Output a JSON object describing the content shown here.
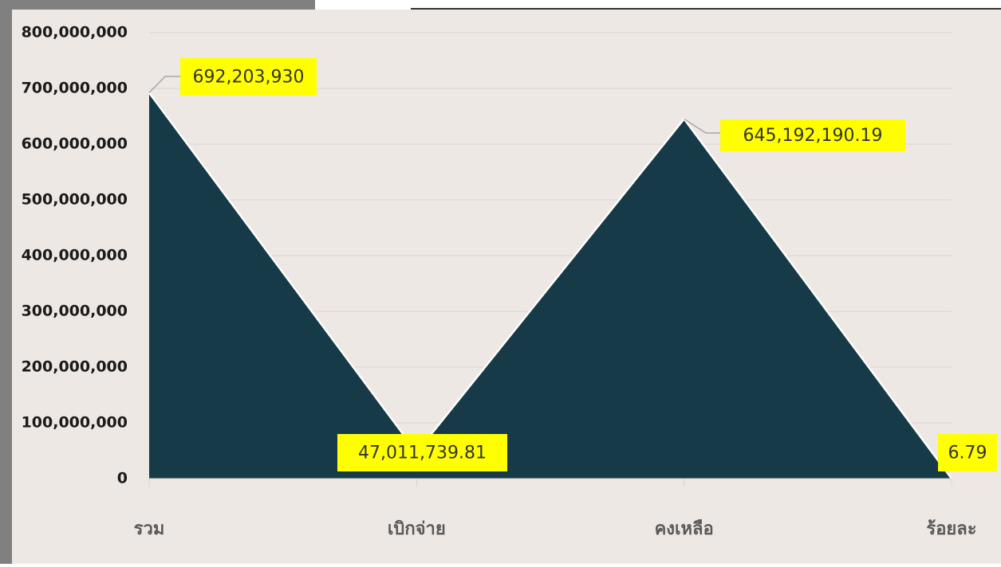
{
  "chart_data": {
    "type": "area",
    "categories": [
      "รวม",
      "เบิกจ่าย",
      "คงเหลือ",
      "ร้อยละ"
    ],
    "values": [
      692203930,
      47011739.81,
      645192190.19,
      6.79
    ],
    "value_labels": [
      "692,203,930",
      "47,011,739.81",
      "645,192,190.19",
      "6.79"
    ],
    "color": "#163a47",
    "ylim": [
      0,
      800000000
    ],
    "yticks": [
      0,
      {
        "value": 100000000,
        "label": "100,000,000"
      },
      {
        "value": 200000000,
        "label": "200,000,000"
      },
      {
        "value": 300000000,
        "label": "300,000,000"
      },
      {
        "value": 400000000,
        "label": "400,000,000"
      },
      {
        "value": 500000000,
        "label": "500,000,000"
      },
      {
        "value": 600000000,
        "label": "600,000,000"
      },
      {
        "value": 700000000,
        "label": "700,000,000"
      },
      {
        "value": 800000000,
        "label": "800,000,000"
      }
    ],
    "grid": true
  }
}
